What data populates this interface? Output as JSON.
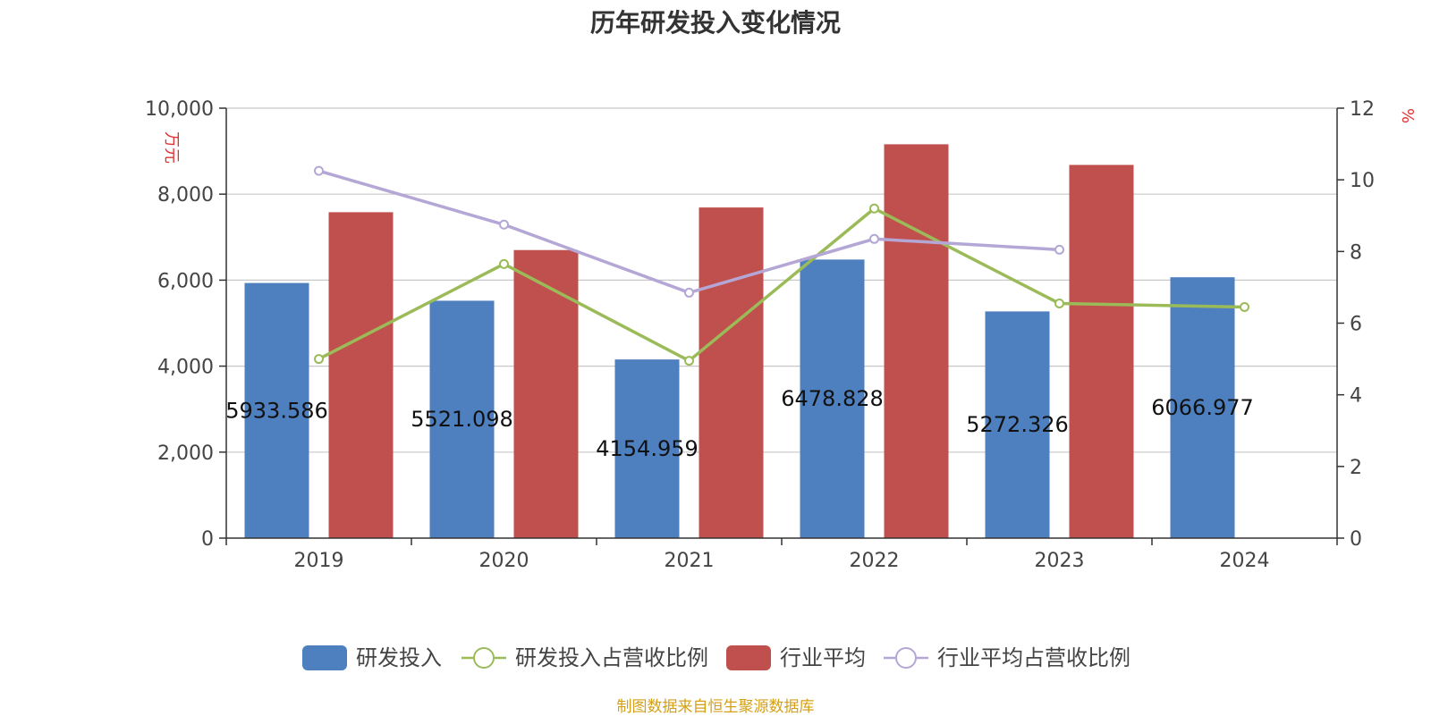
{
  "title": "历年研发投入变化情况",
  "source": "制图数据来自恒生聚源数据库",
  "chart_data": {
    "type": "bar",
    "categories": [
      "2019",
      "2020",
      "2021",
      "2022",
      "2023",
      "2024"
    ],
    "left_axis": {
      "unit": "万元",
      "min": 0,
      "max": 10000,
      "ticks": [
        "0",
        "2,000",
        "4,000",
        "6,000",
        "8,000",
        "10,000"
      ]
    },
    "right_axis": {
      "unit": "%",
      "min": 0,
      "max": 12,
      "ticks": [
        "0",
        "2",
        "4",
        "6",
        "8",
        "10",
        "12"
      ]
    },
    "grid": true,
    "legend_position": "bottom",
    "series": [
      {
        "name": "研发投入",
        "type": "bar",
        "axis": "left",
        "color": "#4e7fbf",
        "values": [
          5933.586,
          5521.098,
          4154.959,
          6478.828,
          5272.326,
          6066.977
        ],
        "labels": [
          "5933.586",
          "5521.098",
          "4154.959",
          "6478.828",
          "5272.326",
          "6066.977"
        ]
      },
      {
        "name": "研发投入占营收比例",
        "type": "line",
        "axis": "right",
        "color": "#9bbb59",
        "values": [
          5.0,
          7.65,
          4.95,
          9.2,
          6.55,
          6.45
        ]
      },
      {
        "name": "行业平均",
        "type": "bar",
        "axis": "left",
        "color": "#c0504d",
        "values": [
          7580,
          6700,
          7690,
          9160,
          8680,
          null
        ]
      },
      {
        "name": "行业平均占营收比例",
        "type": "line",
        "axis": "right",
        "color": "#b4a7d6",
        "values": [
          10.25,
          8.75,
          6.85,
          8.35,
          8.05,
          null
        ]
      }
    ]
  }
}
